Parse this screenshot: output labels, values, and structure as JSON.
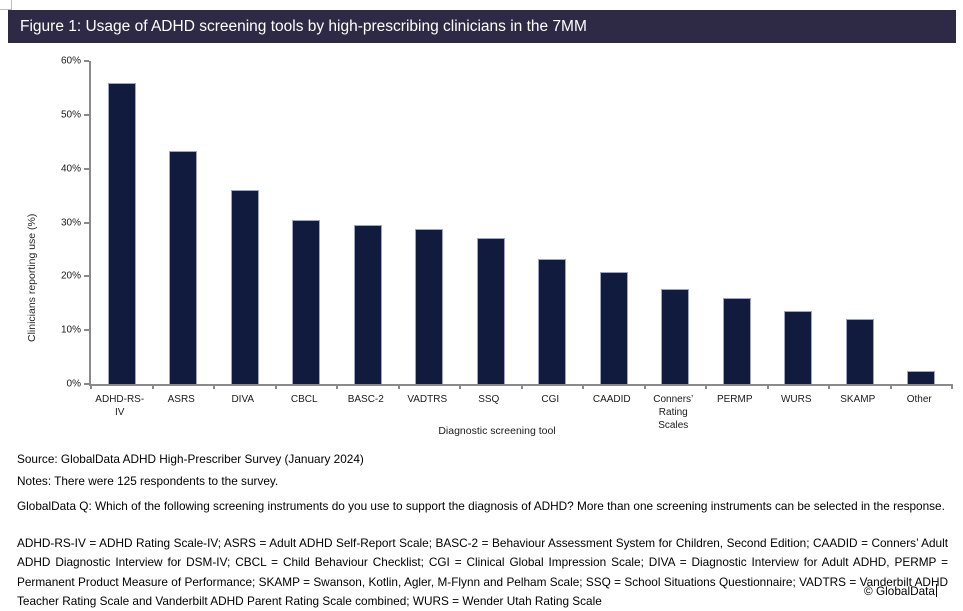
{
  "document": {
    "title_bar": "Figure 1: Usage of ADHD screening tools by high-prescribing clinicians in the 7MM",
    "copyright": "© GlobalData"
  },
  "chart_data": {
    "type": "bar",
    "title": "Figure 1: Usage of ADHD screening tools by high-prescribing clinicians in the 7MM",
    "categories": [
      "ADHD-RS-IV",
      "ASRS",
      "DIVA",
      "CBCL",
      "BASC-2",
      "VADTRS",
      "SSQ",
      "CGI",
      "CAADID",
      "Conners’ Rating Scales",
      "PERMP",
      "WURS",
      "SKAMP",
      "Other"
    ],
    "values": [
      56,
      43.2,
      36,
      30.4,
      29.6,
      28.8,
      27.2,
      23.2,
      20.8,
      17.6,
      16,
      13.6,
      12,
      2.4
    ],
    "unit": "%",
    "xlabel": "Diagnostic screening tool",
    "ylabel": "Clinicians reporting use (%)",
    "ylim": [
      0,
      60
    ],
    "ytick_step": 10,
    "ytick_suffix": "%",
    "grid": false,
    "legend": "none",
    "bar_color": "#111b3d"
  },
  "footer": {
    "source": "Source: GlobalData ADHD High-Prescriber Survey (January 2024)",
    "notes": "Notes: There were 125 respondents to the survey.",
    "question": "GlobalData Q: Which of the following screening instruments do you use to support the diagnosis of ADHD? More than one screening instruments can be selected in the response.",
    "abbreviations": "ADHD-RS-IV = ADHD Rating Scale-IV; ASRS = Adult ADHD Self-Report Scale; BASC-2 = Behaviour Assessment System for Children, Second Edition; CAADID = Conners’ Adult ADHD Diagnostic Interview for DSM-IV; CBCL = Child Behaviour Checklist; CGI = Clinical Global Impression Scale; DIVA = Diagnostic Interview for Adult ADHD, PERMP = Permanent Product Measure of Performance; SKAMP = Swanson, Kotlin, Agler, M-Flynn and Pelham Scale; SSQ = School Situations Questionnaire; VADTRS = Vanderbilt ADHD Teacher Rating Scale and Vanderbilt ADHD Parent Rating Scale combined; WURS = Wender Utah Rating Scale"
  },
  "colors": {
    "title_bar_bg": "#2e2a46",
    "bar_fill": "#111b3d",
    "bar_border": "#9fa4bf",
    "axis": "#8a8a8a"
  }
}
